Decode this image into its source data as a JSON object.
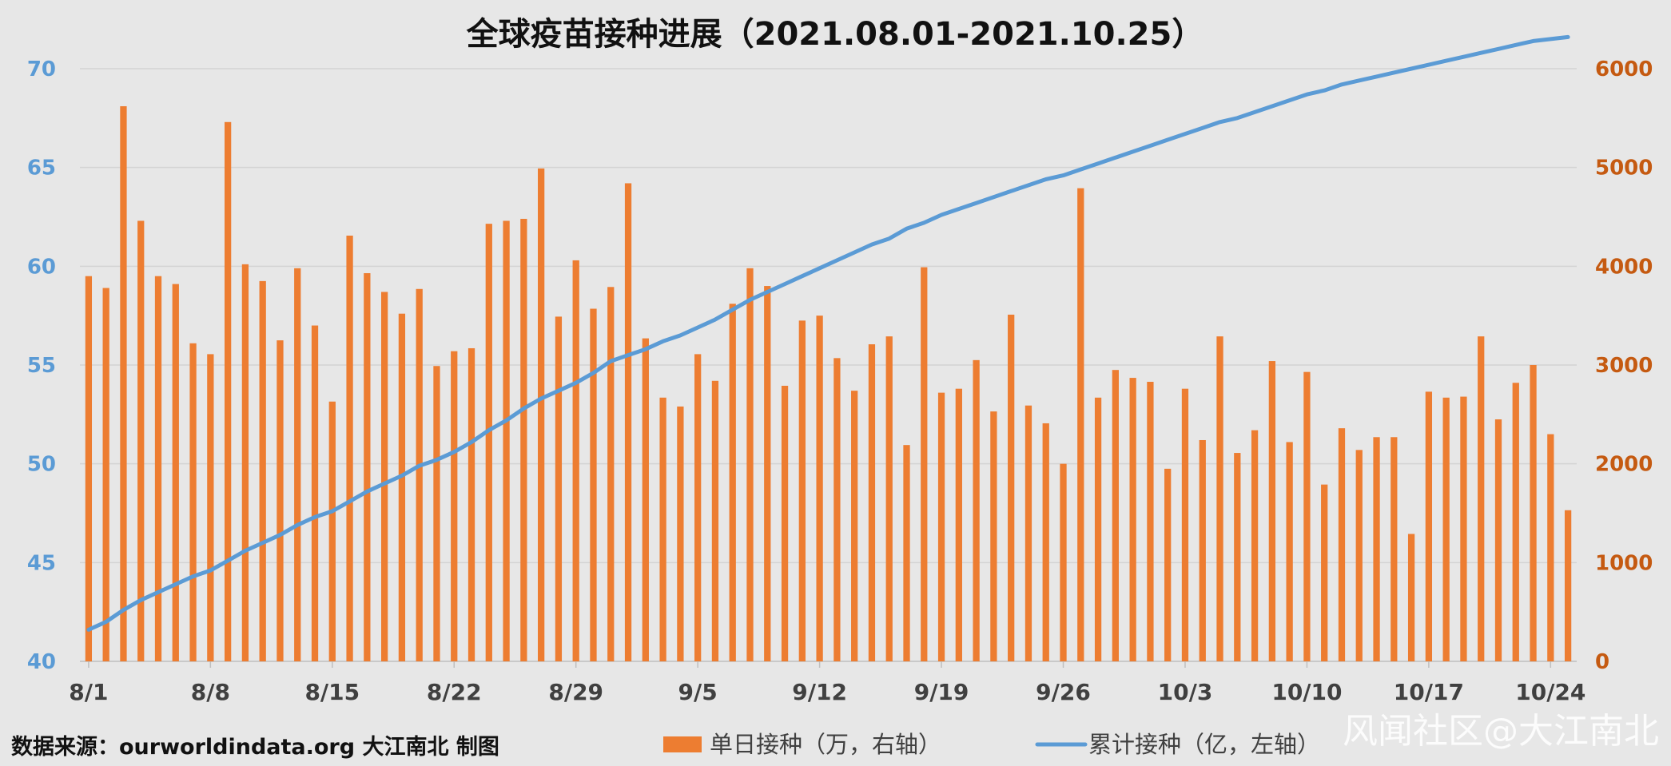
{
  "chart_data": {
    "type": "bar+line",
    "title": "全球疫苗接种进展（2021.08.01-2021.10.25）",
    "x_tick_labels": [
      "8/1",
      "8/8",
      "8/15",
      "8/22",
      "8/29",
      "9/5",
      "9/12",
      "9/19",
      "9/26",
      "10/3",
      "10/10",
      "10/17",
      "10/24"
    ],
    "y_left": {
      "min": 40,
      "max": 70,
      "ticks": [
        "40",
        "45",
        "50",
        "55",
        "60",
        "65",
        "70"
      ]
    },
    "y_right": {
      "min": 0,
      "max": 6000,
      "ticks": [
        "0",
        "1000",
        "2000",
        "3000",
        "4000",
        "5000",
        "6000"
      ]
    },
    "series": [
      {
        "name": "单日接种（万，右轴）",
        "kind": "bar",
        "axis": "right",
        "color": "#ed7d31",
        "values": [
          3900,
          3780,
          5620,
          4460,
          3900,
          3820,
          3220,
          3110,
          5460,
          4020,
          3850,
          3250,
          3980,
          3400,
          2630,
          4310,
          3930,
          3740,
          3520,
          3770,
          2990,
          3140,
          3170,
          4430,
          4460,
          4480,
          4990,
          3490,
          4060,
          3570,
          3790,
          4840,
          3270,
          2670,
          2580,
          3110,
          2840,
          3620,
          3980,
          3800,
          2790,
          3450,
          3500,
          3070,
          2740,
          3210,
          3290,
          2190,
          3990,
          2720,
          2760,
          3050,
          2530,
          3510,
          2590,
          2410,
          2000,
          4790,
          2670,
          2950,
          2870,
          2830,
          1950,
          2760,
          2240,
          3290,
          2110,
          2340,
          3040,
          2220,
          2930,
          1790,
          2360,
          2140,
          2270,
          2270,
          1290,
          2730,
          2670,
          2680,
          3290,
          2450,
          2820,
          3000,
          2300,
          1530
        ]
      },
      {
        "name": "累计接种（亿，左轴）",
        "kind": "line",
        "axis": "left",
        "color": "#5b9bd5",
        "values": [
          41.6,
          42.0,
          42.6,
          43.1,
          43.5,
          43.9,
          44.3,
          44.6,
          45.1,
          45.6,
          46.0,
          46.4,
          46.9,
          47.3,
          47.6,
          48.1,
          48.6,
          49.0,
          49.4,
          49.9,
          50.2,
          50.6,
          51.1,
          51.7,
          52.2,
          52.8,
          53.3,
          53.7,
          54.1,
          54.6,
          55.2,
          55.5,
          55.8,
          56.2,
          56.5,
          56.9,
          57.3,
          57.8,
          58.3,
          58.7,
          59.1,
          59.5,
          59.9,
          60.3,
          60.7,
          61.1,
          61.4,
          61.9,
          62.2,
          62.6,
          62.9,
          63.2,
          63.5,
          63.8,
          64.1,
          64.4,
          64.6,
          64.9,
          65.2,
          65.5,
          65.8,
          66.1,
          66.4,
          66.7,
          67.0,
          67.3,
          67.5,
          67.8,
          68.1,
          68.4,
          68.7,
          68.9,
          69.2,
          69.4,
          69.6,
          69.8,
          70.0,
          70.2,
          70.4,
          70.6,
          70.8,
          71.0,
          71.2,
          71.4,
          71.5,
          71.6
        ]
      }
    ],
    "legend_position": "bottom",
    "grid": true
  },
  "footer": {
    "source": "数据来源：ourworldindata.org    大江南北 制图",
    "watermark": "风闻社区@大江南北"
  }
}
